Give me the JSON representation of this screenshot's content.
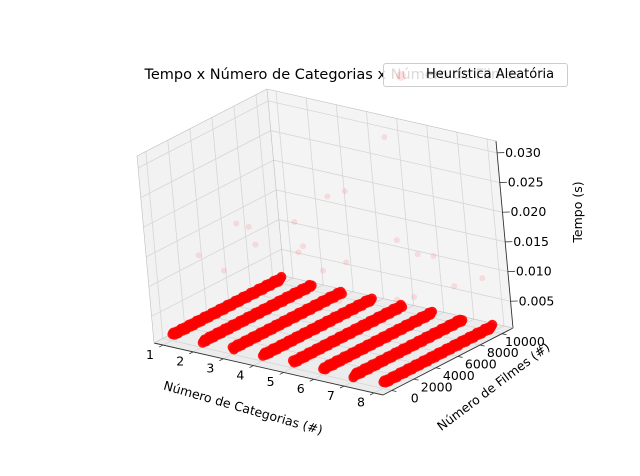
{
  "chart_data": {
    "type": "scatter",
    "title": "Tempo x Número de Categorias x Número de Filmes",
    "xlabel": "Número de Categorias (#)",
    "ylabel": "Número de Filmes (#)",
    "zlabel": "Tempo (s)",
    "x_ticks": [
      "1",
      "2",
      "3",
      "4",
      "5",
      "6",
      "7",
      "8"
    ],
    "y_ticks": [
      "0",
      "2000",
      "4000",
      "6000",
      "8000",
      "10000"
    ],
    "z_ticks": [
      "0.005",
      "0.010",
      "0.015",
      "0.020",
      "0.025",
      "0.030"
    ],
    "xlim": [
      0.7,
      8.3
    ],
    "ylim": [
      -800,
      11000
    ],
    "zlim": [
      0.0005,
      0.032
    ],
    "grid": true,
    "legend": {
      "position": "top-right",
      "entries": [
        "Heurística Aleatória"
      ]
    },
    "marker_color": "#ff0000",
    "series": [
      {
        "name": "Heurística Aleatória",
        "categories": [
          1,
          2,
          3,
          4,
          5,
          6,
          7,
          8
        ],
        "movies_range": [
          100,
          10000
        ],
        "points_per_category": 100,
        "baseline_time": 0.0011,
        "outliers": [
          {
            "x": 1,
            "y": 3000,
            "z": 0.012
          },
          {
            "x": 1,
            "y": 6500,
            "z": 0.014
          },
          {
            "x": 1,
            "y": 8000,
            "z": 0.009
          },
          {
            "x": 2,
            "y": 2500,
            "z": 0.011
          },
          {
            "x": 2,
            "y": 5000,
            "z": 0.016
          },
          {
            "x": 2,
            "y": 9000,
            "z": 0.013
          },
          {
            "x": 3,
            "y": 1500,
            "z": 0.008
          },
          {
            "x": 3,
            "y": 7000,
            "z": 0.012
          },
          {
            "x": 3,
            "y": 9500,
            "z": 0.018
          },
          {
            "x": 4,
            "y": 4000,
            "z": 0.015
          },
          {
            "x": 4,
            "y": 6000,
            "z": 0.01
          },
          {
            "x": 4,
            "y": 8500,
            "z": 0.021
          },
          {
            "x": 5,
            "y": 3500,
            "z": 0.009
          },
          {
            "x": 5,
            "y": 9800,
            "z": 0.03
          },
          {
            "x": 5,
            "y": 5500,
            "z": 0.013
          },
          {
            "x": 6,
            "y": 2000,
            "z": 0.011
          },
          {
            "x": 6,
            "y": 7500,
            "z": 0.016
          },
          {
            "x": 6,
            "y": 9200,
            "z": 0.012
          },
          {
            "x": 7,
            "y": 4500,
            "z": 0.01
          },
          {
            "x": 7,
            "y": 8000,
            "z": 0.014
          },
          {
            "x": 7,
            "y": 6000,
            "z": 0.009
          },
          {
            "x": 8,
            "y": 3000,
            "z": 0.008
          },
          {
            "x": 8,
            "y": 7000,
            "z": 0.011
          },
          {
            "x": 8,
            "y": 9500,
            "z": 0.01
          }
        ]
      }
    ]
  }
}
